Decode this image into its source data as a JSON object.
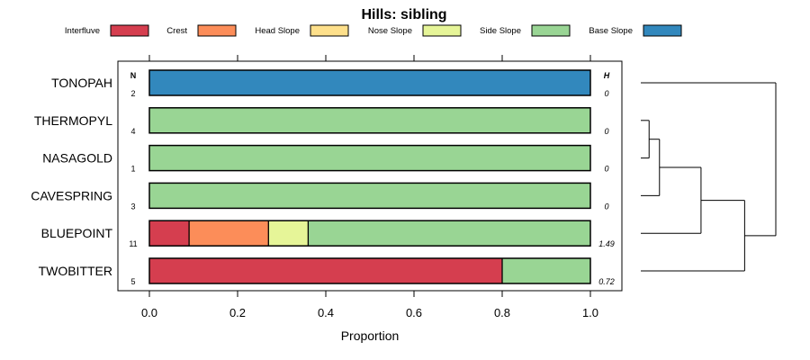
{
  "chart_data": {
    "type": "bar",
    "orientation": "horizontal",
    "stacked": true,
    "title": "Hills: sibling",
    "xlabel": "Proportion",
    "ylabel": "",
    "xlim": [
      0,
      1
    ],
    "xticks": [
      0.0,
      0.2,
      0.4,
      0.6,
      0.8,
      1.0
    ],
    "xtick_labels": [
      "0.0",
      "0.2",
      "0.4",
      "0.6",
      "0.8",
      "1.0"
    ],
    "n_header": "N",
    "h_header": "H",
    "legend": [
      {
        "name": "Interfluve",
        "color": "#d53e4f"
      },
      {
        "name": "Crest",
        "color": "#fc8d59"
      },
      {
        "name": "Head Slope",
        "color": "#fee08b"
      },
      {
        "name": "Nose Slope",
        "color": "#e6f598"
      },
      {
        "name": "Side Slope",
        "color": "#99d594"
      },
      {
        "name": "Base Slope",
        "color": "#3288bd"
      }
    ],
    "categories": [
      "TONOPAH",
      "THERMOPYL",
      "NASAGOLD",
      "CAVESPRING",
      "BLUEPOINT",
      "TWOBITTER"
    ],
    "n": [
      "2",
      "4",
      "1",
      "3",
      "11",
      "5"
    ],
    "h": [
      "0",
      "0",
      "0",
      "0",
      "1.49",
      "0.72"
    ],
    "series": [
      {
        "name": "Interfluve",
        "values": [
          0,
          0,
          0,
          0,
          0.09,
          0.8
        ]
      },
      {
        "name": "Crest",
        "values": [
          0,
          0,
          0,
          0,
          0.18,
          0
        ]
      },
      {
        "name": "Head Slope",
        "values": [
          0,
          0,
          0,
          0,
          0,
          0
        ]
      },
      {
        "name": "Nose Slope",
        "values": [
          0,
          0,
          0,
          0,
          0.09,
          0
        ]
      },
      {
        "name": "Side Slope",
        "values": [
          0,
          1,
          1,
          1,
          0.64,
          0.2
        ]
      },
      {
        "name": "Base Slope",
        "values": [
          1,
          0,
          0,
          0,
          0,
          0
        ]
      }
    ],
    "dendrogram": {
      "type": "hierarchical-clustering",
      "merges": [
        {
          "left": "THERMOPYL",
          "right": "NASAGOLD",
          "height": 0.08
        },
        {
          "left": "THERMOPYL+NASAGOLD",
          "right": "CAVESPRING",
          "height": 0.18
        },
        {
          "left": "THERMOPYL+NASAGOLD+CAVESPRING",
          "right": "BLUEPOINT",
          "height": 0.58
        },
        {
          "left": "THERMOPYL+NASAGOLD+CAVESPRING+BLUEPOINT",
          "right": "TWOBITTER",
          "height": 1.0
        },
        {
          "left": "TONOPAH",
          "right": "rest",
          "height": 1.3
        }
      ]
    }
  }
}
